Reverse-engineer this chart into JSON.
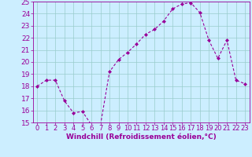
{
  "x": [
    0,
    1,
    2,
    3,
    4,
    5,
    6,
    7,
    8,
    9,
    10,
    11,
    12,
    13,
    14,
    15,
    16,
    17,
    18,
    19,
    20,
    21,
    22,
    23
  ],
  "y": [
    18.0,
    18.5,
    18.5,
    16.8,
    15.8,
    15.9,
    14.8,
    14.8,
    19.2,
    20.2,
    20.8,
    21.5,
    22.3,
    22.7,
    23.4,
    24.4,
    24.8,
    24.9,
    24.1,
    21.8,
    20.3,
    21.8,
    18.5,
    18.2
  ],
  "line_color": "#990099",
  "marker": "D",
  "marker_size": 2.0,
  "bg_color": "#cceeff",
  "grid_color": "#99cccc",
  "xlabel": "Windchill (Refroidissement éolien,°C)",
  "ylim": [
    15,
    25
  ],
  "xlim": [
    -0.5,
    23.5
  ],
  "yticks": [
    15,
    16,
    17,
    18,
    19,
    20,
    21,
    22,
    23,
    24,
    25
  ],
  "xticks": [
    0,
    1,
    2,
    3,
    4,
    5,
    6,
    7,
    8,
    9,
    10,
    11,
    12,
    13,
    14,
    15,
    16,
    17,
    18,
    19,
    20,
    21,
    22,
    23
  ],
  "xlabel_color": "#990099",
  "tick_color": "#990099",
  "axis_color": "#990099",
  "xlabel_fontsize": 6.5,
  "tick_fontsize": 6.0,
  "ytick_fontsize": 6.5
}
